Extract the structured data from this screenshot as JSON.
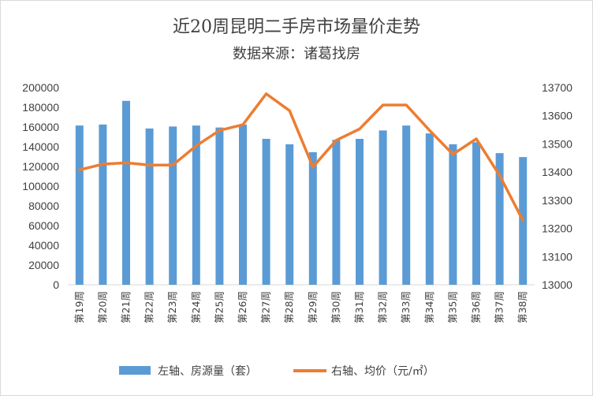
{
  "chart_data": {
    "type": "bar+line",
    "title": "近20周昆明二手房市场量价走势",
    "subtitle": "数据来源：诸葛找房",
    "categories": [
      "第19周",
      "第20周",
      "第21周",
      "第22周",
      "第23周",
      "第24周",
      "第25周",
      "第26周",
      "第27周",
      "第28周",
      "第29周",
      "第30周",
      "第31周",
      "第32周",
      "第33周",
      "第34周",
      "第35周",
      "第36周",
      "第37周",
      "第38周"
    ],
    "series": [
      {
        "name": "左轴、房源量（套）",
        "type": "bar",
        "axis": "left",
        "color": "#5b9bd5",
        "values": [
          161500,
          162500,
          186500,
          158500,
          160500,
          161500,
          159500,
          162500,
          148000,
          142500,
          134500,
          147000,
          148000,
          156500,
          161500,
          153500,
          142500,
          144500,
          133500,
          129500
        ]
      },
      {
        "name": "右轴、均价（元/㎡）",
        "type": "line",
        "axis": "right",
        "color": "#ed7d31",
        "values": [
          13408,
          13428,
          13433,
          13425,
          13425,
          13493,
          13548,
          13568,
          13678,
          13618,
          13418,
          13513,
          13553,
          13638,
          13638,
          13548,
          13463,
          13518,
          13388,
          13228
        ]
      }
    ],
    "y_left": {
      "min": 0,
      "max": 200000,
      "step": 20000,
      "ticks": [
        "0",
        "20000",
        "40000",
        "60000",
        "80000",
        "100000",
        "120000",
        "140000",
        "160000",
        "180000",
        "200000"
      ]
    },
    "y_right": {
      "min": 13000,
      "max": 13700,
      "step": 100,
      "ticks": [
        "13000",
        "13100",
        "13200",
        "13300",
        "13400",
        "13500",
        "13600",
        "13700"
      ]
    },
    "grid": false,
    "legend_position": "bottom"
  }
}
